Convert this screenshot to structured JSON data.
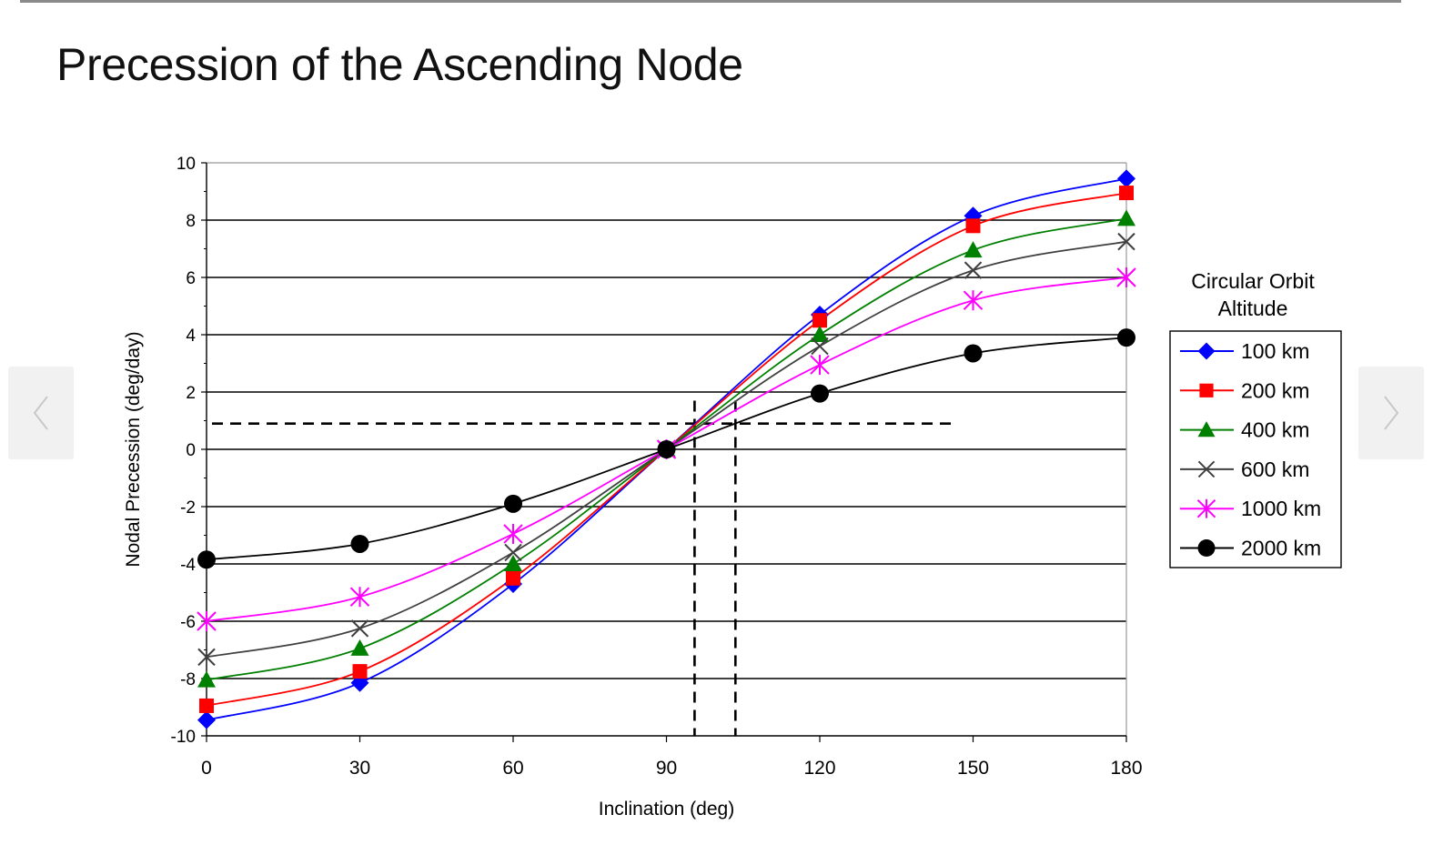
{
  "slide": {
    "title": "Precession of the Ascending Node"
  },
  "nav": {
    "prev_icon": "chevron-left-icon",
    "next_icon": "chevron-right-icon",
    "prev_glyph": "‹",
    "next_glyph": "›"
  },
  "chart_data": {
    "type": "line",
    "title": "",
    "xlabel": "Inclination (deg)",
    "ylabel": "Nodal Precession (deg/day)",
    "xlim": [
      0,
      180
    ],
    "ylim": [
      -10,
      10
    ],
    "xticks": [
      "0",
      "30",
      "60",
      "90",
      "120",
      "150",
      "180"
    ],
    "yticks": [
      "10",
      "8",
      "6",
      "4",
      "2",
      "0",
      "-2",
      "-4",
      "-6",
      "-8",
      "-10"
    ],
    "x": [
      0,
      30,
      60,
      90,
      120,
      150,
      180
    ],
    "grid": true,
    "legend": {
      "title": "Circular Orbit Altitude",
      "title_lines": [
        "Circular Orbit",
        "Altitude"
      ],
      "position": "right"
    },
    "series": [
      {
        "name": "100 km",
        "color": "#0000ff",
        "marker": "diamond",
        "values": [
          -9.45,
          -8.15,
          -4.7,
          0,
          4.7,
          8.15,
          9.45
        ]
      },
      {
        "name": "200 km",
        "color": "#ff0000",
        "marker": "square",
        "values": [
          -8.95,
          -7.75,
          -4.5,
          0,
          4.5,
          7.8,
          8.95
        ]
      },
      {
        "name": "400 km",
        "color": "#008000",
        "marker": "triangle",
        "values": [
          -8.05,
          -6.95,
          -4.0,
          0,
          4.0,
          6.95,
          8.05
        ]
      },
      {
        "name": "600 km",
        "color": "#404040",
        "marker": "x",
        "values": [
          -7.25,
          -6.25,
          -3.6,
          0,
          3.6,
          6.25,
          7.25
        ]
      },
      {
        "name": "1000 km",
        "color": "#ff00ff",
        "marker": "star",
        "values": [
          -6.0,
          -5.15,
          -2.95,
          0,
          2.95,
          5.2,
          6.0
        ]
      },
      {
        "name": "2000 km",
        "color": "#000000",
        "marker": "circle",
        "values": [
          -3.85,
          -3.3,
          -1.9,
          0,
          1.95,
          3.35,
          3.9
        ]
      }
    ],
    "reference_lines": {
      "horizontal_y": 0.9,
      "horizontal_x_range": [
        0,
        146
      ],
      "vertical_x": [
        95.5,
        103.5
      ],
      "vertical_y_range": [
        -10,
        1.7
      ],
      "style": "dashed"
    }
  }
}
